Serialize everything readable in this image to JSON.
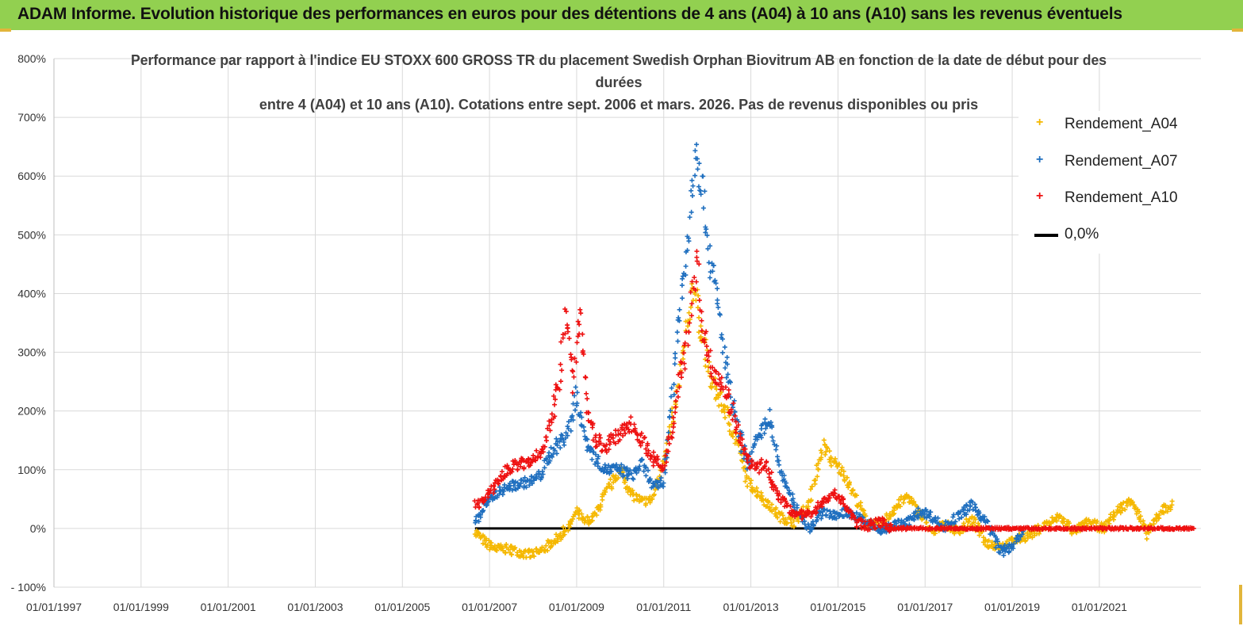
{
  "banner": {
    "title": "ADAM Informe. Evolution historique des performances en euros pour des détentions de 4 ans (A04) à 10 ans (A10) sans les revenus éventuels"
  },
  "colors": {
    "banner_bg": "#92d050",
    "A04": "#f5b800",
    "A07": "#1f6fbf",
    "A10": "#ee1111",
    "zero": "#000000",
    "grid": "#d9d9d9"
  },
  "chart_data": {
    "type": "scatter",
    "title_lines": [
      "Performance par rapport à l'indice EU STOXX 600 GROSS TR  du placement Swedish Orphan Biovitrum AB en fonction de la date de début pour des",
      "durées",
      "entre 4 (A04) et 10 ans (A10).  Cotations entre sept. 2006 et mars. 2026. Pas de revenus disponibles ou pris"
    ],
    "xlabel": "",
    "ylabel": "",
    "x_ticks": [
      "01/01/1997",
      "01/01/1999",
      "01/01/2001",
      "01/01/2003",
      "01/01/2005",
      "01/01/2007",
      "01/01/2009",
      "01/01/2011",
      "01/01/2013",
      "01/01/2015",
      "01/01/2017",
      "01/01/2019",
      "01/01/2021"
    ],
    "xlim": [
      "1997-01-01",
      "2023-05-01"
    ],
    "y_ticks": [
      "- 100%",
      "0%",
      "100%",
      "200%",
      "300%",
      "400%",
      "500%",
      "600%",
      "700%",
      "800%"
    ],
    "ylim": [
      -100,
      800
    ],
    "grid": true,
    "legend_position": "right",
    "series": [
      {
        "name": "Rendement_A04",
        "marker": "+",
        "points": [
          [
            "2006-09",
            -5
          ],
          [
            "2006-12",
            -25
          ],
          [
            "2007-03",
            -35
          ],
          [
            "2007-06",
            -35
          ],
          [
            "2007-09",
            -40
          ],
          [
            "2007-12",
            -45
          ],
          [
            "2008-03",
            -40
          ],
          [
            "2008-06",
            -25
          ],
          [
            "2008-09",
            -10
          ],
          [
            "2008-11",
            5
          ],
          [
            "2009-01",
            30
          ],
          [
            "2009-03",
            10
          ],
          [
            "2009-06",
            20
          ],
          [
            "2009-09",
            60
          ],
          [
            "2010-01",
            100
          ],
          [
            "2010-04",
            60
          ],
          [
            "2010-07",
            45
          ],
          [
            "2010-10",
            50
          ],
          [
            "2011-01",
            120
          ],
          [
            "2011-04",
            200
          ],
          [
            "2011-07",
            320
          ],
          [
            "2011-09",
            420
          ],
          [
            "2011-11",
            350
          ],
          [
            "2012-02",
            250
          ],
          [
            "2012-06",
            200
          ],
          [
            "2012-09",
            150
          ],
          [
            "2012-12",
            80
          ],
          [
            "2013-03",
            60
          ],
          [
            "2013-06",
            40
          ],
          [
            "2013-09",
            20
          ],
          [
            "2014-01",
            10
          ],
          [
            "2014-05",
            40
          ],
          [
            "2014-09",
            140
          ],
          [
            "2014-12",
            110
          ],
          [
            "2015-03",
            90
          ],
          [
            "2015-06",
            50
          ],
          [
            "2015-09",
            10
          ],
          [
            "2016-01",
            5
          ],
          [
            "2016-04",
            30
          ],
          [
            "2016-08",
            55
          ],
          [
            "2016-12",
            20
          ],
          [
            "2017-03",
            -10
          ],
          [
            "2017-06",
            10
          ],
          [
            "2017-10",
            -5
          ],
          [
            "2018-02",
            15
          ],
          [
            "2018-06",
            -25
          ],
          [
            "2018-10",
            -30
          ],
          [
            "2019-02",
            -20
          ],
          [
            "2019-06",
            -10
          ],
          [
            "2019-10",
            5
          ],
          [
            "2020-02",
            20
          ],
          [
            "2020-06",
            -5
          ],
          [
            "2020-10",
            10
          ],
          [
            "2021-02",
            0
          ],
          [
            "2021-06",
            30
          ],
          [
            "2021-10",
            50
          ],
          [
            "2022-02",
            -10
          ],
          [
            "2022-06",
            30
          ],
          [
            "2022-09",
            40
          ]
        ]
      },
      {
        "name": "Rendement_A07",
        "marker": "+",
        "points": [
          [
            "2006-09",
            10
          ],
          [
            "2006-12",
            40
          ],
          [
            "2007-03",
            60
          ],
          [
            "2007-06",
            70
          ],
          [
            "2007-09",
            75
          ],
          [
            "2007-12",
            80
          ],
          [
            "2008-03",
            90
          ],
          [
            "2008-06",
            130
          ],
          [
            "2008-09",
            150
          ],
          [
            "2008-11",
            170
          ],
          [
            "2009-01",
            230
          ],
          [
            "2009-03",
            160
          ],
          [
            "2009-06",
            120
          ],
          [
            "2009-09",
            100
          ],
          [
            "2010-01",
            100
          ],
          [
            "2010-04",
            90
          ],
          [
            "2010-07",
            110
          ],
          [
            "2010-10",
            70
          ],
          [
            "2011-01",
            80
          ],
          [
            "2011-03",
            200
          ],
          [
            "2011-05",
            350
          ],
          [
            "2011-07",
            450
          ],
          [
            "2011-09",
            600
          ],
          [
            "2011-10",
            660
          ],
          [
            "2011-12",
            560
          ],
          [
            "2012-02",
            450
          ],
          [
            "2012-04",
            380
          ],
          [
            "2012-06",
            280
          ],
          [
            "2012-09",
            180
          ],
          [
            "2012-12",
            110
          ],
          [
            "2013-03",
            150
          ],
          [
            "2013-06",
            190
          ],
          [
            "2013-09",
            100
          ],
          [
            "2014-01",
            40
          ],
          [
            "2014-05",
            0
          ],
          [
            "2014-09",
            30
          ],
          [
            "2014-12",
            20
          ],
          [
            "2015-03",
            30
          ],
          [
            "2015-06",
            20
          ],
          [
            "2015-09",
            10
          ],
          [
            "2016-01",
            -5
          ],
          [
            "2016-04",
            5
          ],
          [
            "2016-08",
            10
          ],
          [
            "2016-12",
            30
          ],
          [
            "2017-03",
            20
          ],
          [
            "2017-06",
            0
          ],
          [
            "2017-10",
            20
          ],
          [
            "2018-02",
            40
          ],
          [
            "2018-06",
            10
          ],
          [
            "2018-10",
            -40
          ],
          [
            "2019-01",
            -30
          ],
          [
            "2019-04",
            -5
          ]
        ]
      },
      {
        "name": "Rendement_A10",
        "marker": "+",
        "points": [
          [
            "2006-09",
            40
          ],
          [
            "2006-12",
            50
          ],
          [
            "2007-03",
            80
          ],
          [
            "2007-06",
            100
          ],
          [
            "2007-09",
            110
          ],
          [
            "2007-12",
            110
          ],
          [
            "2008-03",
            130
          ],
          [
            "2008-06",
            180
          ],
          [
            "2008-08",
            240
          ],
          [
            "2008-10",
            380
          ],
          [
            "2008-12",
            250
          ],
          [
            "2009-02",
            370
          ],
          [
            "2009-04",
            200
          ],
          [
            "2009-06",
            150
          ],
          [
            "2009-09",
            140
          ],
          [
            "2010-01",
            160
          ],
          [
            "2010-04",
            180
          ],
          [
            "2010-07",
            150
          ],
          [
            "2010-10",
            120
          ],
          [
            "2011-01",
            100
          ],
          [
            "2011-03",
            160
          ],
          [
            "2011-05",
            250
          ],
          [
            "2011-07",
            300
          ],
          [
            "2011-09",
            400
          ],
          [
            "2011-10",
            460
          ],
          [
            "2011-12",
            330
          ],
          [
            "2012-02",
            280
          ],
          [
            "2012-05",
            250
          ],
          [
            "2012-08",
            200
          ],
          [
            "2012-11",
            130
          ],
          [
            "2013-02",
            100
          ],
          [
            "2013-05",
            110
          ],
          [
            "2013-08",
            60
          ],
          [
            "2013-12",
            30
          ],
          [
            "2014-04",
            20
          ],
          [
            "2014-08",
            40
          ],
          [
            "2014-12",
            60
          ],
          [
            "2015-03",
            40
          ],
          [
            "2015-06",
            10
          ],
          [
            "2015-09",
            5
          ],
          [
            "2016-01",
            10
          ],
          [
            "2016-04",
            0
          ],
          [
            "2016-08",
            0
          ],
          [
            "2017-01",
            0
          ],
          [
            "2018-01",
            0
          ],
          [
            "2019-01",
            0
          ],
          [
            "2020-01",
            0
          ],
          [
            "2021-01",
            0
          ],
          [
            "2022-01",
            0
          ],
          [
            "2023-03",
            0
          ]
        ]
      },
      {
        "name": "0,0%",
        "marker": "line",
        "points": [
          [
            "2006-09",
            0
          ],
          [
            "2016-03",
            0
          ]
        ]
      }
    ]
  }
}
